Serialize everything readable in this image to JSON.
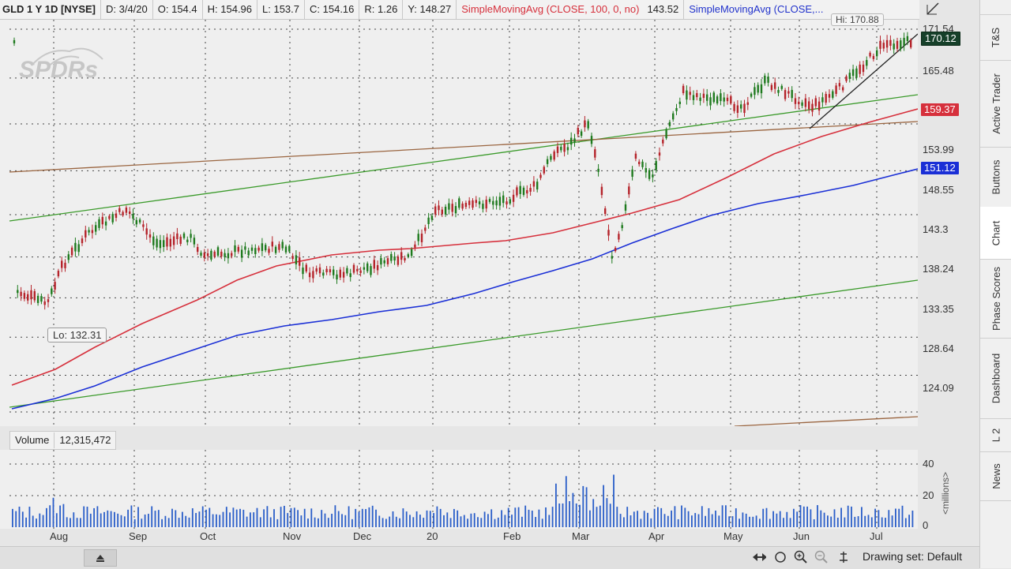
{
  "header": {
    "symbol": "GLD 1 Y 1D [NYSE]",
    "date": "D: 3/4/20",
    "open": "O: 154.4",
    "high": "H: 154.96",
    "low": "L: 153.7",
    "close": "C: 154.16",
    "range": "R: 1.26",
    "year": "Y: 148.27",
    "sma1": "SimpleMovingAvg (CLOSE, 100, 0, no)",
    "sma1_value": "143.52",
    "sma2": "SimpleMovingAvg (CLOSE,..."
  },
  "chart": {
    "watermark": "SPDRs",
    "hi_label": "Hi: 170.88",
    "lo_label": "Lo: 132.31",
    "price_axis": [
      "171.54",
      "165.48",
      "153.99",
      "148.55",
      "143.3",
      "138.24",
      "133.35",
      "128.64",
      "124.09"
    ],
    "current_price": "170.12",
    "sma_red_value": "159.37",
    "sma_blue_value": "151.12",
    "colors": {
      "red_sma": "#d6303c",
      "blue_sma": "#1a2fd6",
      "green_channel": "#3a9a2a",
      "brown_channel": "#9a6540",
      "trendline": "#222222",
      "candle_up": "#1e7a1e",
      "candle_down": "#b5232a",
      "volume": "#2a5ec9"
    }
  },
  "volume": {
    "label": "Volume",
    "value": "12,315,472",
    "axis": [
      "40",
      "20",
      "0"
    ],
    "unit": "<millions>"
  },
  "xaxis": [
    "Aug",
    "Sep",
    "Oct",
    "Nov",
    "Dec",
    "20",
    "Feb",
    "Mar",
    "Apr",
    "May",
    "Jun",
    "Jul"
  ],
  "footer": {
    "drawing_set": "Drawing set: Default"
  },
  "sidebar": {
    "tabs": [
      "T&S",
      "Active Trader",
      "Buttons",
      "Chart",
      "Phase Scores",
      "Dashboard",
      "L 2",
      "News"
    ]
  }
}
